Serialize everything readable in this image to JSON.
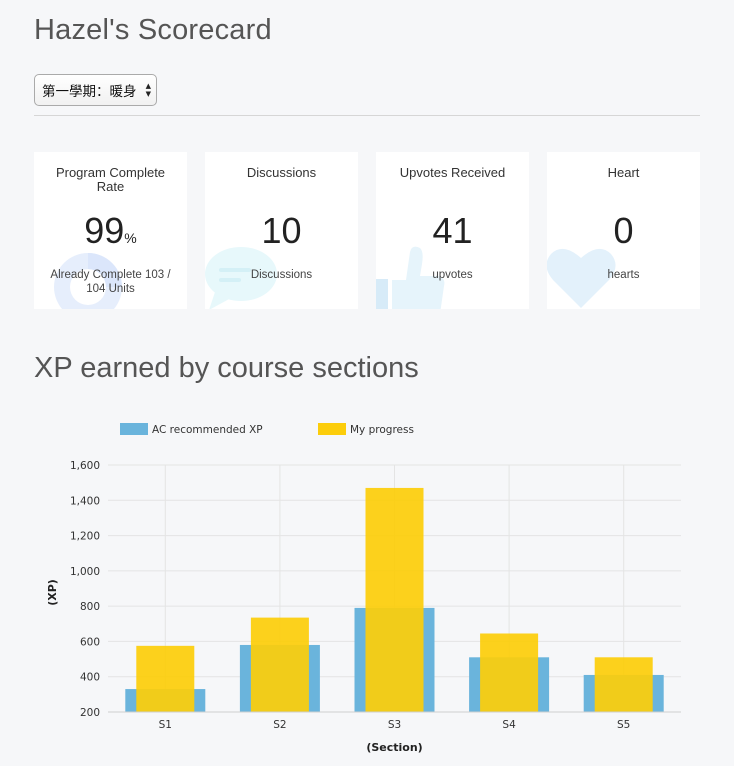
{
  "page": {
    "title": "Hazel's Scorecard",
    "term_select": {
      "value": "第一學期：暖身"
    }
  },
  "stats": {
    "complete_rate": {
      "title": "Program Complete Rate",
      "value": "99",
      "unit": "%",
      "subtitle": "Already Complete 103 / 104 Units",
      "icon": "pie-chart-icon",
      "icon_color": "#e6eefc"
    },
    "discussions": {
      "title": "Discussions",
      "value": "10",
      "subtitle": "Discussions",
      "icon": "chat-bubble-icon",
      "icon_color": "#e7f8fb"
    },
    "upvotes": {
      "title": "Upvotes Received",
      "value": "41",
      "subtitle": "upvotes",
      "icon": "thumbs-up-icon",
      "icon_color": "#e6f4fb"
    },
    "hearts": {
      "title": "Heart",
      "value": "0",
      "subtitle": "hearts",
      "icon": "heart-icon",
      "icon_color": "#e3f1fb"
    }
  },
  "xp_section": {
    "title": "XP earned by course sections"
  },
  "chart_data": {
    "type": "bar",
    "categories": [
      "S1",
      "S2",
      "S3",
      "S4",
      "S5"
    ],
    "series": [
      {
        "name": "AC recommended XP",
        "values": [
          330,
          580,
          790,
          510,
          410
        ],
        "color": "#6ab4dc"
      },
      {
        "name": "My progress",
        "values": [
          575,
          735,
          1470,
          645,
          510
        ],
        "color": "#fccd0b"
      }
    ],
    "xlabel": "(Section)",
    "ylabel": "(XP)",
    "ylim": [
      200,
      1600
    ],
    "yticks": [
      "200",
      "400",
      "600",
      "800",
      "1,000",
      "1,200",
      "1,400",
      "1,600"
    ],
    "grid": true,
    "legend_position": "top-left"
  }
}
